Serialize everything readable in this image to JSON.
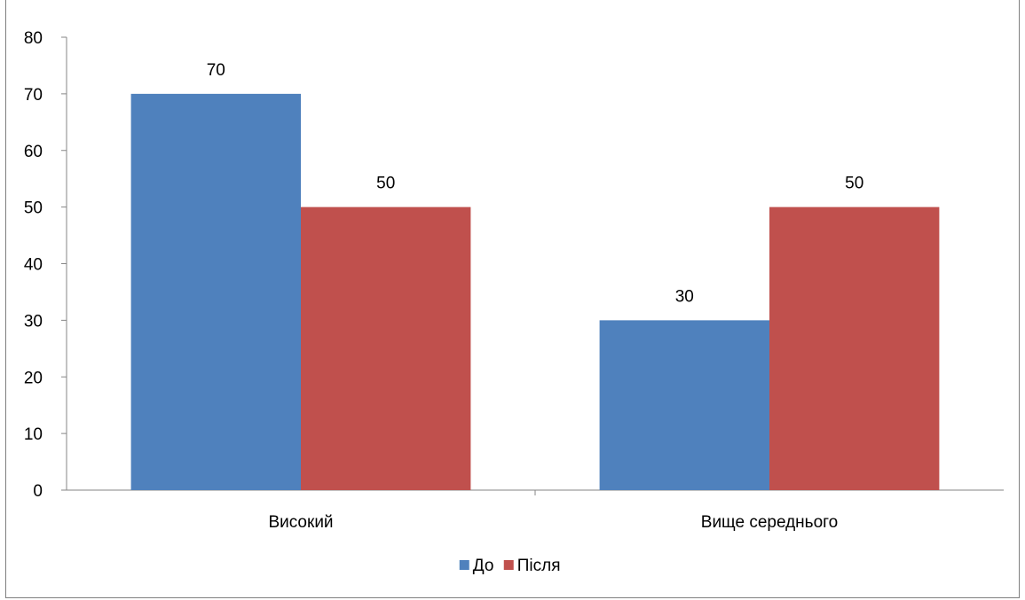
{
  "chart_data": {
    "type": "bar",
    "categories": [
      "Високий",
      "Вище середнього"
    ],
    "series": [
      {
        "name": "До",
        "values": [
          70,
          30
        ],
        "color": "#4f81bd"
      },
      {
        "name": "Після",
        "values": [
          50,
          50
        ],
        "color": "#c0504d"
      }
    ],
    "ylim": [
      0,
      80
    ],
    "yticks": [
      0,
      10,
      20,
      30,
      40,
      50,
      60,
      70,
      80
    ],
    "data_labels": true,
    "grid": false,
    "legend_position": "bottom"
  }
}
